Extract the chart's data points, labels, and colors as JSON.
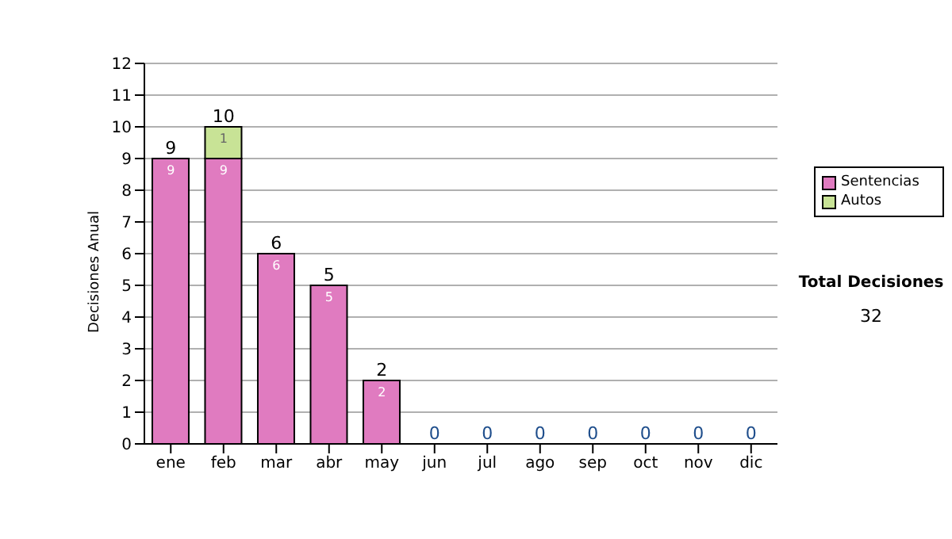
{
  "chart_data": {
    "type": "bar",
    "stacked": true,
    "ylabel": "Decisiones Anual",
    "categories": [
      "ene",
      "feb",
      "mar",
      "abr",
      "may",
      "jun",
      "jul",
      "ago",
      "sep",
      "oct",
      "nov",
      "dic"
    ],
    "series": [
      {
        "name": "Sentencias",
        "color": "#e07bc0",
        "values": [
          9,
          9,
          6,
          5,
          2,
          0,
          0,
          0,
          0,
          0,
          0,
          0
        ],
        "value_labels": [
          "9",
          "9",
          "6",
          "5",
          "2",
          null,
          null,
          null,
          null,
          null,
          null,
          null
        ]
      },
      {
        "name": "Autos",
        "color": "#c8e396",
        "values": [
          0,
          1,
          0,
          0,
          0,
          0,
          0,
          0,
          0,
          0,
          0,
          0
        ],
        "value_labels": [
          null,
          "1",
          null,
          null,
          null,
          null,
          null,
          null,
          null,
          null,
          null,
          null
        ]
      }
    ],
    "totals": [
      "9",
      "10",
      "6",
      "5",
      "2",
      "0",
      "0",
      "0",
      "0",
      "0",
      "0",
      "0"
    ],
    "ylim": [
      0,
      12
    ],
    "yticks": [
      0,
      1,
      2,
      3,
      4,
      5,
      6,
      7,
      8,
      9,
      10,
      11,
      12
    ],
    "grid": "y",
    "legend": "right",
    "annotations": [
      "Total Decisiones",
      "32"
    ]
  }
}
